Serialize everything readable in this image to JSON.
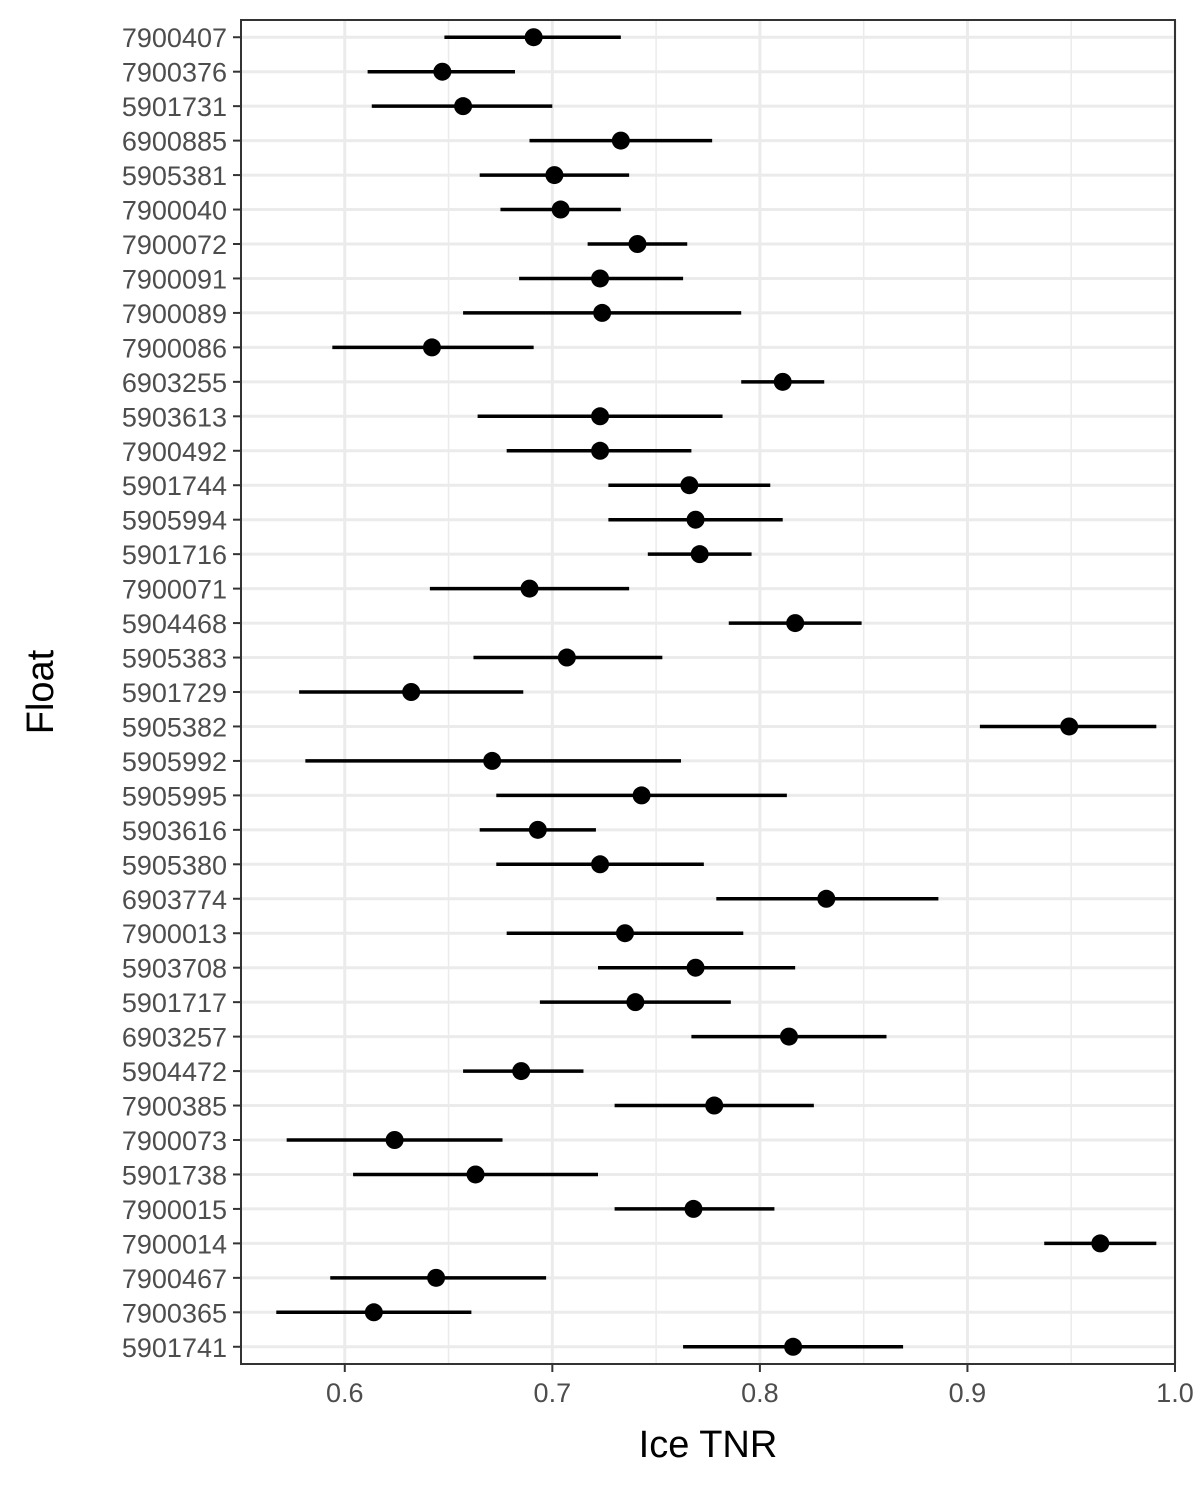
{
  "chart_data": {
    "type": "scatter",
    "title": "",
    "xlabel": "Ice TNR",
    "ylabel": "Float",
    "xlim": [
      0.55,
      1.0
    ],
    "x_ticks": [
      "0.6",
      "0.7",
      "0.8",
      "0.9",
      "1.0"
    ],
    "x_tick_values": [
      0.6,
      0.7,
      0.8,
      0.9,
      1.0
    ],
    "grid": true,
    "legend": "none",
    "error_bars": "horizontal",
    "point_color": "#000000",
    "points": [
      {
        "float": "7900407",
        "estimate": 0.691,
        "lower": 0.648,
        "upper": 0.733
      },
      {
        "float": "7900376",
        "estimate": 0.647,
        "lower": 0.611,
        "upper": 0.682
      },
      {
        "float": "5901731",
        "estimate": 0.657,
        "lower": 0.613,
        "upper": 0.7
      },
      {
        "float": "6900885",
        "estimate": 0.733,
        "lower": 0.689,
        "upper": 0.777
      },
      {
        "float": "5905381",
        "estimate": 0.701,
        "lower": 0.665,
        "upper": 0.737
      },
      {
        "float": "7900040",
        "estimate": 0.704,
        "lower": 0.675,
        "upper": 0.733
      },
      {
        "float": "7900072",
        "estimate": 0.741,
        "lower": 0.717,
        "upper": 0.765
      },
      {
        "float": "7900091",
        "estimate": 0.723,
        "lower": 0.684,
        "upper": 0.763
      },
      {
        "float": "7900089",
        "estimate": 0.724,
        "lower": 0.657,
        "upper": 0.791
      },
      {
        "float": "7900086",
        "estimate": 0.642,
        "lower": 0.594,
        "upper": 0.691
      },
      {
        "float": "6903255",
        "estimate": 0.811,
        "lower": 0.791,
        "upper": 0.831
      },
      {
        "float": "5903613",
        "estimate": 0.723,
        "lower": 0.664,
        "upper": 0.782
      },
      {
        "float": "7900492",
        "estimate": 0.723,
        "lower": 0.678,
        "upper": 0.767
      },
      {
        "float": "5901744",
        "estimate": 0.766,
        "lower": 0.727,
        "upper": 0.805
      },
      {
        "float": "5905994",
        "estimate": 0.769,
        "lower": 0.727,
        "upper": 0.811
      },
      {
        "float": "5901716",
        "estimate": 0.771,
        "lower": 0.746,
        "upper": 0.796
      },
      {
        "float": "7900071",
        "estimate": 0.689,
        "lower": 0.641,
        "upper": 0.737
      },
      {
        "float": "5904468",
        "estimate": 0.817,
        "lower": 0.785,
        "upper": 0.849
      },
      {
        "float": "5905383",
        "estimate": 0.707,
        "lower": 0.662,
        "upper": 0.753
      },
      {
        "float": "5901729",
        "estimate": 0.632,
        "lower": 0.578,
        "upper": 0.686
      },
      {
        "float": "5905382",
        "estimate": 0.949,
        "lower": 0.906,
        "upper": 0.991
      },
      {
        "float": "5905992",
        "estimate": 0.671,
        "lower": 0.581,
        "upper": 0.762
      },
      {
        "float": "5905995",
        "estimate": 0.743,
        "lower": 0.673,
        "upper": 0.813
      },
      {
        "float": "5903616",
        "estimate": 0.693,
        "lower": 0.665,
        "upper": 0.721
      },
      {
        "float": "5905380",
        "estimate": 0.723,
        "lower": 0.673,
        "upper": 0.773
      },
      {
        "float": "6903774",
        "estimate": 0.832,
        "lower": 0.779,
        "upper": 0.886
      },
      {
        "float": "7900013",
        "estimate": 0.735,
        "lower": 0.678,
        "upper": 0.792
      },
      {
        "float": "5903708",
        "estimate": 0.769,
        "lower": 0.722,
        "upper": 0.817
      },
      {
        "float": "5901717",
        "estimate": 0.74,
        "lower": 0.694,
        "upper": 0.786
      },
      {
        "float": "6903257",
        "estimate": 0.814,
        "lower": 0.767,
        "upper": 0.861
      },
      {
        "float": "5904472",
        "estimate": 0.685,
        "lower": 0.657,
        "upper": 0.715
      },
      {
        "float": "7900385",
        "estimate": 0.778,
        "lower": 0.73,
        "upper": 0.826
      },
      {
        "float": "7900073",
        "estimate": 0.624,
        "lower": 0.572,
        "upper": 0.676
      },
      {
        "float": "5901738",
        "estimate": 0.663,
        "lower": 0.604,
        "upper": 0.722
      },
      {
        "float": "7900015",
        "estimate": 0.768,
        "lower": 0.73,
        "upper": 0.807
      },
      {
        "float": "7900014",
        "estimate": 0.964,
        "lower": 0.937,
        "upper": 0.991
      },
      {
        "float": "7900467",
        "estimate": 0.644,
        "lower": 0.593,
        "upper": 0.697
      },
      {
        "float": "7900365",
        "estimate": 0.614,
        "lower": 0.567,
        "upper": 0.661
      },
      {
        "float": "5901741",
        "estimate": 0.816,
        "lower": 0.763,
        "upper": 0.869
      }
    ]
  }
}
